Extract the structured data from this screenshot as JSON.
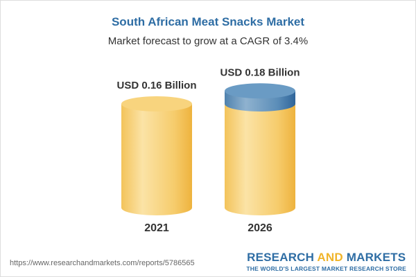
{
  "chart_data": {
    "type": "bar",
    "title": "South African Meat Snacks Market",
    "subtitle": "Market forecast to grow at a CAGR of 3.4%",
    "categories": [
      "2021",
      "2026"
    ],
    "values": [
      0.16,
      0.18
    ],
    "data_labels": [
      "USD 0.16 Billion",
      "USD 0.18 Billion"
    ],
    "unit": "USD Billion",
    "style": "3d-cylinder",
    "colors": {
      "bar": "#f5c65a",
      "growth_segment": "#5b8db8",
      "title": "#2e6da4"
    },
    "grid": false
  },
  "footer": {
    "url": "https://www.researchandmarkets.com/reports/5786565",
    "logo_part1": "RESEARCH ",
    "logo_part2": "AND",
    "logo_part3": " MARKETS",
    "tagline": "THE WORLD'S LARGEST MARKET RESEARCH STORE"
  }
}
